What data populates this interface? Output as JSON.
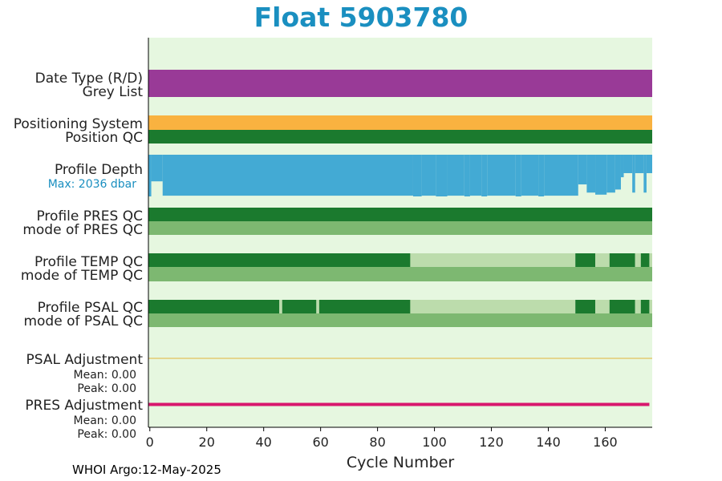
{
  "title": "Float 5903780",
  "footer": "WHOI Argo:12-May-2025",
  "colors": {
    "background": "#e6f7e0",
    "purple": "#993a97",
    "orange": "#f9b240",
    "dark_green": "#1b7a2e",
    "mid_green": "#7db871",
    "light_green": "#bcdcac",
    "blue": "#43aad4",
    "psal_adj": "#e3b53a",
    "pres_adj": "#d8176d",
    "title": "#1a8fc0"
  },
  "chart_data": {
    "type": "timeline",
    "xlabel": "Cycle Number",
    "xlim": [
      -0.5,
      176.5
    ],
    "xticks": [
      0,
      20,
      40,
      60,
      80,
      100,
      120,
      140,
      160
    ],
    "row_labels": {
      "date_type": "Date Type (R/D)",
      "grey_list": "Grey List",
      "positioning_system": "Positioning System",
      "position_qc": "Position QC",
      "profile_depth": "Profile Depth",
      "max_depth": "Max: 2036 dbar",
      "profile_pres_qc": "Profile PRES QC",
      "mode_pres_qc": "mode of PRES QC",
      "profile_temp_qc": "Profile TEMP QC",
      "mode_temp_qc": "mode of TEMP QC",
      "profile_psal_qc": "Profile PSAL QC",
      "mode_psal_qc": "mode of PSAL QC",
      "psal_adjustment": "PSAL Adjustment",
      "psal_mean": "Mean: 0.00",
      "psal_peak": "Peak: 0.00",
      "pres_adjustment": "PRES Adjustment",
      "pres_mean": "Mean: 0.00",
      "pres_peak": "Peak: 0.00"
    },
    "bars": [
      {
        "name": "date-type",
        "row": "date_type",
        "segments": [
          {
            "start": -0.5,
            "end": 176.5,
            "color": "purple"
          }
        ]
      },
      {
        "name": "positioning-system",
        "row": "positioning_system",
        "segments": [
          {
            "start": -0.5,
            "end": 176.5,
            "color": "orange"
          }
        ]
      },
      {
        "name": "position-qc",
        "row": "position_qc",
        "segments": [
          {
            "start": -0.5,
            "end": 176.5,
            "color": "dark_green"
          }
        ]
      },
      {
        "name": "profile-pres-qc",
        "row": "profile_pres_qc",
        "segments": [
          {
            "start": -0.5,
            "end": 176.5,
            "color": "dark_green"
          }
        ]
      },
      {
        "name": "mode-pres-qc",
        "row": "mode_pres_qc",
        "segments": [
          {
            "start": -0.5,
            "end": 176.5,
            "color": "mid_green"
          }
        ]
      },
      {
        "name": "profile-temp-qc",
        "row": "profile_temp_qc",
        "segments": [
          {
            "start": -0.5,
            "end": 91.5,
            "color": "dark_green"
          },
          {
            "start": 91.5,
            "end": 149.5,
            "color": "light_green"
          },
          {
            "start": 149.5,
            "end": 156.5,
            "color": "dark_green"
          },
          {
            "start": 156.5,
            "end": 161.5,
            "color": "light_green"
          },
          {
            "start": 161.5,
            "end": 170.5,
            "color": "dark_green"
          },
          {
            "start": 170.5,
            "end": 172.5,
            "color": "light_green"
          },
          {
            "start": 172.5,
            "end": 175.5,
            "color": "dark_green"
          },
          {
            "start": 175.5,
            "end": 176.5,
            "color": "light_green"
          }
        ]
      },
      {
        "name": "mode-temp-qc",
        "row": "mode_temp_qc",
        "segments": [
          {
            "start": -0.5,
            "end": 176.5,
            "color": "mid_green"
          }
        ]
      },
      {
        "name": "profile-psal-qc",
        "row": "profile_psal_qc",
        "segments": [
          {
            "start": -0.5,
            "end": 45.5,
            "color": "dark_green"
          },
          {
            "start": 45.5,
            "end": 46.5,
            "color": "light_green"
          },
          {
            "start": 46.5,
            "end": 58.5,
            "color": "dark_green"
          },
          {
            "start": 58.5,
            "end": 59.5,
            "color": "light_green"
          },
          {
            "start": 59.5,
            "end": 91.5,
            "color": "dark_green"
          },
          {
            "start": 91.5,
            "end": 149.5,
            "color": "light_green"
          },
          {
            "start": 149.5,
            "end": 156.5,
            "color": "dark_green"
          },
          {
            "start": 156.5,
            "end": 161.5,
            "color": "light_green"
          },
          {
            "start": 161.5,
            "end": 170.5,
            "color": "dark_green"
          },
          {
            "start": 170.5,
            "end": 172.5,
            "color": "light_green"
          },
          {
            "start": 172.5,
            "end": 175.5,
            "color": "dark_green"
          },
          {
            "start": 175.5,
            "end": 176.5,
            "color": "light_green"
          }
        ]
      },
      {
        "name": "mode-psal-qc",
        "row": "mode_psal_qc",
        "segments": [
          {
            "start": -0.5,
            "end": 176.5,
            "color": "mid_green"
          }
        ]
      }
    ],
    "profile_depth": {
      "max_dbar": 2036,
      "segments": [
        {
          "start": -0.5,
          "end": 0.5,
          "depth": 2036
        },
        {
          "start": 0.5,
          "end": 4.5,
          "depth": 1300
        },
        {
          "start": 4.5,
          "end": 92.5,
          "depth": 2000
        },
        {
          "start": 92.5,
          "end": 95.5,
          "depth": 2036
        },
        {
          "start": 95.5,
          "end": 100.5,
          "depth": 2000
        },
        {
          "start": 100.5,
          "end": 104.5,
          "depth": 2036
        },
        {
          "start": 104.5,
          "end": 110.5,
          "depth": 2000
        },
        {
          "start": 110.5,
          "end": 112.5,
          "depth": 2036
        },
        {
          "start": 112.5,
          "end": 116.5,
          "depth": 2000
        },
        {
          "start": 116.5,
          "end": 118.5,
          "depth": 2036
        },
        {
          "start": 118.5,
          "end": 128.5,
          "depth": 2000
        },
        {
          "start": 128.5,
          "end": 130.5,
          "depth": 2036
        },
        {
          "start": 130.5,
          "end": 136.5,
          "depth": 2000
        },
        {
          "start": 136.5,
          "end": 138.5,
          "depth": 2036
        },
        {
          "start": 138.5,
          "end": 150.5,
          "depth": 2000
        },
        {
          "start": 150.5,
          "end": 153.5,
          "depth": 1450
        },
        {
          "start": 153.5,
          "end": 156.5,
          "depth": 1850
        },
        {
          "start": 156.5,
          "end": 160.5,
          "depth": 1950
        },
        {
          "start": 160.5,
          "end": 163.5,
          "depth": 1850
        },
        {
          "start": 163.5,
          "end": 165.5,
          "depth": 1700
        },
        {
          "start": 165.5,
          "end": 166.5,
          "depth": 1100
        },
        {
          "start": 166.5,
          "end": 169.5,
          "depth": 900
        },
        {
          "start": 169.5,
          "end": 170.5,
          "depth": 1850
        },
        {
          "start": 170.5,
          "end": 173.5,
          "depth": 900
        },
        {
          "start": 173.5,
          "end": 174.5,
          "depth": 1850
        },
        {
          "start": 174.5,
          "end": 176.5,
          "depth": 900
        }
      ]
    },
    "psal_adjustment_line": {
      "start": -0.5,
      "end": 176.5,
      "color": "psal_adj"
    },
    "pres_adjustment_line": {
      "start": -0.5,
      "end": 175.5,
      "color": "pres_adj"
    }
  }
}
